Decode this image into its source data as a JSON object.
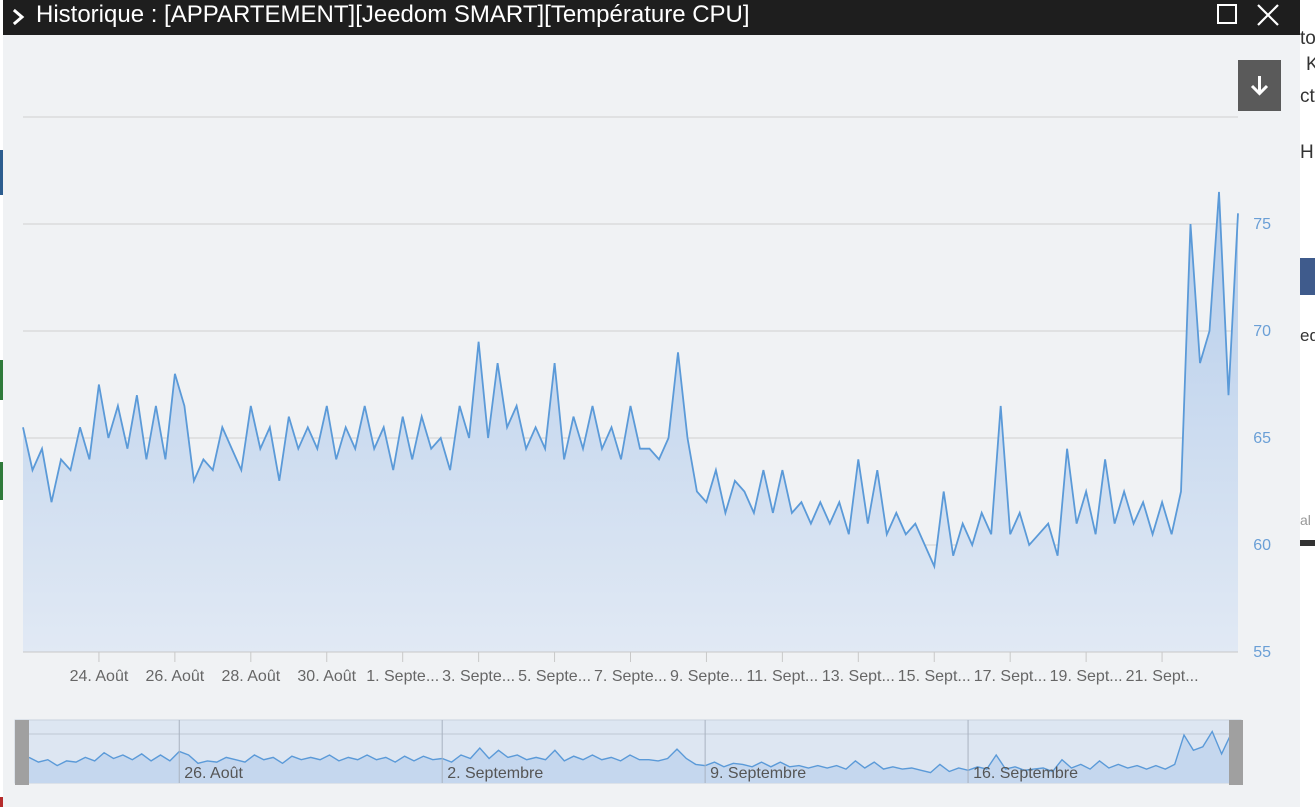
{
  "window": {
    "title": "Historique : [APPARTEMENT][Jeedom SMART][Température CPU]"
  },
  "background": {
    "right_texts": [
      "to",
      "K",
      "ct",
      "H",
      "ed",
      "al"
    ]
  },
  "colors": {
    "line": "#5b9ad8",
    "area_top": "#b5cdeb",
    "area_bottom": "#e1e9f4",
    "grid": "#d0d0d0",
    "title_bg": "#1e1e1e",
    "dialog_bg": "#f0f2f4",
    "export_button": "#5a5a5a"
  },
  "icons": {
    "title": "chevron-right-icon",
    "maximize": "maximize-icon",
    "close": "close-icon",
    "export": "download-arrow-icon"
  },
  "chart_data": {
    "type": "area",
    "title": "",
    "xlabel": "",
    "ylabel": "",
    "x_range": [
      "2023-08-22",
      "2023-09-23"
    ],
    "ylim": [
      55,
      80
    ],
    "y_ticks": [
      55,
      60,
      65,
      70,
      75
    ],
    "y_axis_position": "right",
    "grid": true,
    "legend": "none",
    "x_ticks": [
      {
        "date": "2023-08-24",
        "label": "24. Août"
      },
      {
        "date": "2023-08-26",
        "label": "26. Août"
      },
      {
        "date": "2023-08-28",
        "label": "28. Août"
      },
      {
        "date": "2023-08-30",
        "label": "30. Août"
      },
      {
        "date": "2023-09-01",
        "label": "1. Septe..."
      },
      {
        "date": "2023-09-03",
        "label": "3. Septe..."
      },
      {
        "date": "2023-09-05",
        "label": "5. Septe..."
      },
      {
        "date": "2023-09-07",
        "label": "7. Septe..."
      },
      {
        "date": "2023-09-09",
        "label": "9. Septe..."
      },
      {
        "date": "2023-09-11",
        "label": "11. Sept..."
      },
      {
        "date": "2023-09-13",
        "label": "13. Sept..."
      },
      {
        "date": "2023-09-15",
        "label": "15. Sept..."
      },
      {
        "date": "2023-09-17",
        "label": "17. Sept..."
      },
      {
        "date": "2023-09-19",
        "label": "19. Sept..."
      },
      {
        "date": "2023-09-21",
        "label": "21. Sept..."
      }
    ],
    "navigator_ticks": [
      {
        "date": "2023-08-26",
        "label": "26. Août"
      },
      {
        "date": "2023-09-02",
        "label": "2. Septembre"
      },
      {
        "date": "2023-09-09",
        "label": "9. Septembre"
      },
      {
        "date": "2023-09-16",
        "label": "16. Septembre"
      }
    ],
    "series": [
      {
        "values": [
          [
            "2023-08-22 00:00",
            65.5
          ],
          [
            "2023-08-22 06:00",
            63.5
          ],
          [
            "2023-08-22 12:00",
            64.5
          ],
          [
            "2023-08-22 18:00",
            62.0
          ],
          [
            "2023-08-23 00:00",
            64.0
          ],
          [
            "2023-08-23 06:00",
            63.5
          ],
          [
            "2023-08-23 12:00",
            65.5
          ],
          [
            "2023-08-23 18:00",
            64.0
          ],
          [
            "2023-08-24 00:00",
            67.5
          ],
          [
            "2023-08-24 06:00",
            65.0
          ],
          [
            "2023-08-24 12:00",
            66.5
          ],
          [
            "2023-08-24 18:00",
            64.5
          ],
          [
            "2023-08-25 00:00",
            67.0
          ],
          [
            "2023-08-25 06:00",
            64.0
          ],
          [
            "2023-08-25 12:00",
            66.5
          ],
          [
            "2023-08-25 18:00",
            64.0
          ],
          [
            "2023-08-26 00:00",
            68.0
          ],
          [
            "2023-08-26 06:00",
            66.5
          ],
          [
            "2023-08-26 12:00",
            63.0
          ],
          [
            "2023-08-26 18:00",
            64.0
          ],
          [
            "2023-08-27 00:00",
            63.5
          ],
          [
            "2023-08-27 06:00",
            65.5
          ],
          [
            "2023-08-27 12:00",
            64.5
          ],
          [
            "2023-08-27 18:00",
            63.5
          ],
          [
            "2023-08-28 00:00",
            66.5
          ],
          [
            "2023-08-28 06:00",
            64.5
          ],
          [
            "2023-08-28 12:00",
            65.5
          ],
          [
            "2023-08-28 18:00",
            63.0
          ],
          [
            "2023-08-29 00:00",
            66.0
          ],
          [
            "2023-08-29 06:00",
            64.5
          ],
          [
            "2023-08-29 12:00",
            65.5
          ],
          [
            "2023-08-29 18:00",
            64.5
          ],
          [
            "2023-08-30 00:00",
            66.5
          ],
          [
            "2023-08-30 06:00",
            64.0
          ],
          [
            "2023-08-30 12:00",
            65.5
          ],
          [
            "2023-08-30 18:00",
            64.5
          ],
          [
            "2023-08-31 00:00",
            66.5
          ],
          [
            "2023-08-31 06:00",
            64.5
          ],
          [
            "2023-08-31 12:00",
            65.5
          ],
          [
            "2023-08-31 18:00",
            63.5
          ],
          [
            "2023-09-01 00:00",
            66.0
          ],
          [
            "2023-09-01 06:00",
            64.0
          ],
          [
            "2023-09-01 12:00",
            66.0
          ],
          [
            "2023-09-01 18:00",
            64.5
          ],
          [
            "2023-09-02 00:00",
            65.0
          ],
          [
            "2023-09-02 06:00",
            63.5
          ],
          [
            "2023-09-02 12:00",
            66.5
          ],
          [
            "2023-09-02 18:00",
            65.0
          ],
          [
            "2023-09-03 00:00",
            69.5
          ],
          [
            "2023-09-03 06:00",
            65.0
          ],
          [
            "2023-09-03 12:00",
            68.5
          ],
          [
            "2023-09-03 18:00",
            65.5
          ],
          [
            "2023-09-04 00:00",
            66.5
          ],
          [
            "2023-09-04 06:00",
            64.5
          ],
          [
            "2023-09-04 12:00",
            65.5
          ],
          [
            "2023-09-04 18:00",
            64.5
          ],
          [
            "2023-09-05 00:00",
            68.5
          ],
          [
            "2023-09-05 06:00",
            64.0
          ],
          [
            "2023-09-05 12:00",
            66.0
          ],
          [
            "2023-09-05 18:00",
            64.5
          ],
          [
            "2023-09-06 00:00",
            66.5
          ],
          [
            "2023-09-06 06:00",
            64.5
          ],
          [
            "2023-09-06 12:00",
            65.5
          ],
          [
            "2023-09-06 18:00",
            64.0
          ],
          [
            "2023-09-07 00:00",
            66.5
          ],
          [
            "2023-09-07 06:00",
            64.5
          ],
          [
            "2023-09-07 12:00",
            64.5
          ],
          [
            "2023-09-07 18:00",
            64.0
          ],
          [
            "2023-09-08 00:00",
            65.0
          ],
          [
            "2023-09-08 06:00",
            69.0
          ],
          [
            "2023-09-08 12:00",
            65.0
          ],
          [
            "2023-09-08 18:00",
            62.5
          ],
          [
            "2023-09-09 00:00",
            62.0
          ],
          [
            "2023-09-09 06:00",
            63.5
          ],
          [
            "2023-09-09 12:00",
            61.5
          ],
          [
            "2023-09-09 18:00",
            63.0
          ],
          [
            "2023-09-10 00:00",
            62.5
          ],
          [
            "2023-09-10 06:00",
            61.5
          ],
          [
            "2023-09-10 12:00",
            63.5
          ],
          [
            "2023-09-10 18:00",
            61.5
          ],
          [
            "2023-09-11 00:00",
            63.5
          ],
          [
            "2023-09-11 06:00",
            61.5
          ],
          [
            "2023-09-11 12:00",
            62.0
          ],
          [
            "2023-09-11 18:00",
            61.0
          ],
          [
            "2023-09-12 00:00",
            62.0
          ],
          [
            "2023-09-12 06:00",
            61.0
          ],
          [
            "2023-09-12 12:00",
            62.0
          ],
          [
            "2023-09-12 18:00",
            60.5
          ],
          [
            "2023-09-13 00:00",
            64.0
          ],
          [
            "2023-09-13 06:00",
            61.0
          ],
          [
            "2023-09-13 12:00",
            63.5
          ],
          [
            "2023-09-13 18:00",
            60.5
          ],
          [
            "2023-09-14 00:00",
            61.5
          ],
          [
            "2023-09-14 06:00",
            60.5
          ],
          [
            "2023-09-14 12:00",
            61.0
          ],
          [
            "2023-09-14 18:00",
            60.0
          ],
          [
            "2023-09-15 00:00",
            59.0
          ],
          [
            "2023-09-15 06:00",
            62.5
          ],
          [
            "2023-09-15 12:00",
            59.5
          ],
          [
            "2023-09-15 18:00",
            61.0
          ],
          [
            "2023-09-16 00:00",
            60.0
          ],
          [
            "2023-09-16 06:00",
            61.5
          ],
          [
            "2023-09-16 12:00",
            60.5
          ],
          [
            "2023-09-16 18:00",
            66.5
          ],
          [
            "2023-09-17 00:00",
            60.5
          ],
          [
            "2023-09-17 06:00",
            61.5
          ],
          [
            "2023-09-17 12:00",
            60.0
          ],
          [
            "2023-09-17 18:00",
            60.5
          ],
          [
            "2023-09-18 00:00",
            61.0
          ],
          [
            "2023-09-18 06:00",
            59.5
          ],
          [
            "2023-09-18 12:00",
            64.5
          ],
          [
            "2023-09-18 18:00",
            61.0
          ],
          [
            "2023-09-19 00:00",
            62.5
          ],
          [
            "2023-09-19 06:00",
            60.5
          ],
          [
            "2023-09-19 12:00",
            64.0
          ],
          [
            "2023-09-19 18:00",
            61.0
          ],
          [
            "2023-09-20 00:00",
            62.5
          ],
          [
            "2023-09-20 06:00",
            61.0
          ],
          [
            "2023-09-20 12:00",
            62.0
          ],
          [
            "2023-09-20 18:00",
            60.5
          ],
          [
            "2023-09-21 00:00",
            62.0
          ],
          [
            "2023-09-21 06:00",
            60.5
          ],
          [
            "2023-09-21 12:00",
            62.5
          ],
          [
            "2023-09-21 18:00",
            75.0
          ],
          [
            "2023-09-22 00:00",
            68.5
          ],
          [
            "2023-09-22 06:00",
            70.0
          ],
          [
            "2023-09-22 12:00",
            76.5
          ],
          [
            "2023-09-22 18:00",
            67.0
          ],
          [
            "2023-09-23 00:00",
            75.5
          ]
        ]
      }
    ]
  }
}
